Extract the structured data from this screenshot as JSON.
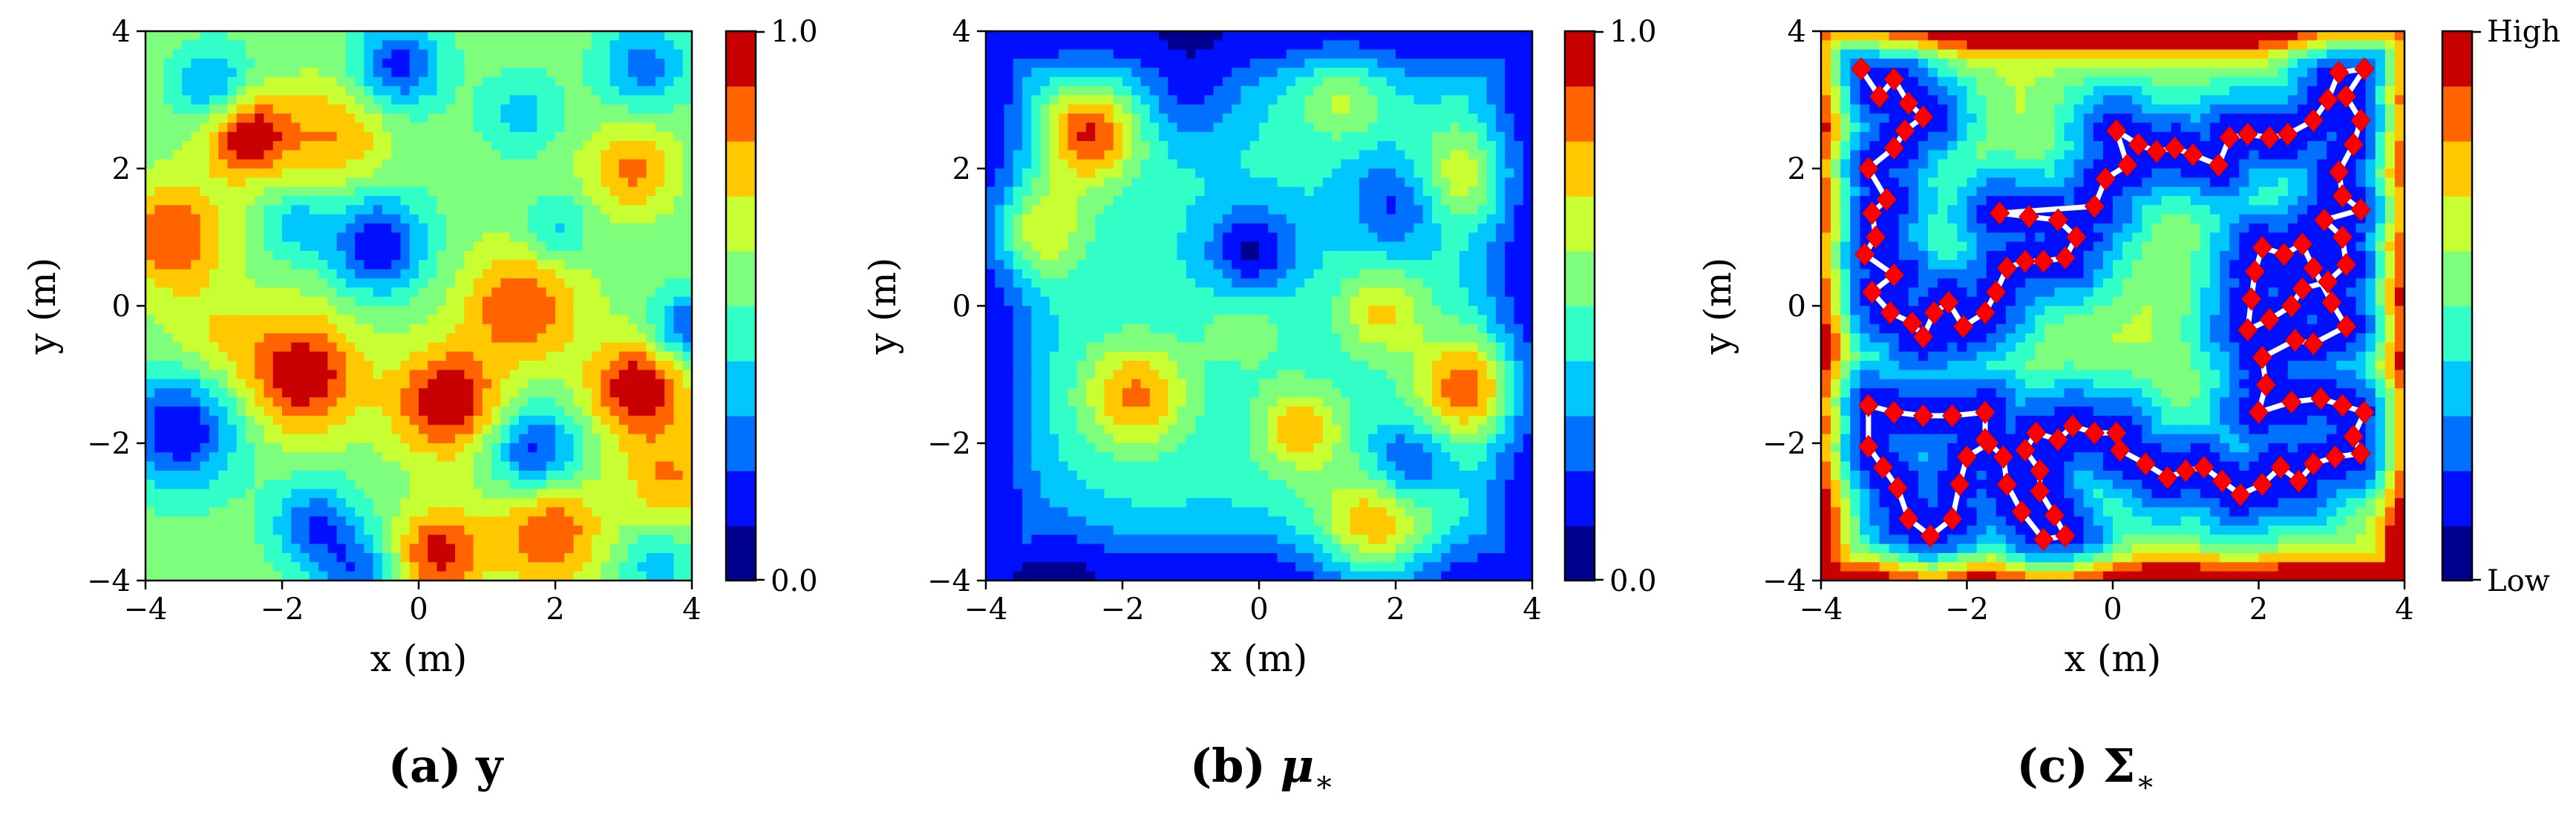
{
  "chart_data": [
    {
      "type": "heatmap",
      "panel": "a",
      "caption": {
        "label": "(a)",
        "symbol": "y"
      },
      "xlabel": "x (m)",
      "ylabel": "y (m)",
      "xlim": [
        -4,
        4
      ],
      "ylim": [
        -4,
        4
      ],
      "xticks": [
        "−4",
        "−2",
        "0",
        "2",
        "4"
      ],
      "yticks": [
        "−4",
        "−2",
        "0",
        "2",
        "4"
      ],
      "colorbar": {
        "min_label": "0.0",
        "max_label": "1.0",
        "levels": 10
      },
      "colormap": "jet",
      "base_level": 0.55,
      "blobs": [
        {
          "x": -2.5,
          "y": 2.5,
          "s": 0.45,
          "a": 0.45
        },
        {
          "x": -3.6,
          "y": 1.0,
          "s": 0.55,
          "a": 0.35
        },
        {
          "x": -1.7,
          "y": -1.0,
          "s": 0.6,
          "a": 0.45
        },
        {
          "x": 0.4,
          "y": -1.4,
          "s": 0.55,
          "a": 0.45
        },
        {
          "x": 1.5,
          "y": 0.0,
          "s": 0.6,
          "a": 0.35
        },
        {
          "x": 3.2,
          "y": -1.2,
          "s": 0.5,
          "a": 0.45
        },
        {
          "x": 0.3,
          "y": -3.6,
          "s": 0.45,
          "a": 0.4
        },
        {
          "x": 1.9,
          "y": -3.3,
          "s": 0.55,
          "a": 0.35
        },
        {
          "x": -1.2,
          "y": 2.5,
          "s": 0.55,
          "a": 0.25
        },
        {
          "x": 3.1,
          "y": 2.0,
          "s": 0.45,
          "a": 0.28
        },
        {
          "x": 3.7,
          "y": -2.5,
          "s": 0.5,
          "a": 0.25
        },
        {
          "x": -3.0,
          "y": -0.5,
          "s": 0.5,
          "a": 0.15
        },
        {
          "x": -0.6,
          "y": 0.9,
          "s": 0.5,
          "a": -0.45
        },
        {
          "x": 1.7,
          "y": -2.1,
          "s": 0.45,
          "a": -0.4
        },
        {
          "x": -0.3,
          "y": 3.5,
          "s": 0.45,
          "a": -0.4
        },
        {
          "x": -3.0,
          "y": 3.2,
          "s": 0.4,
          "a": -0.3
        },
        {
          "x": -3.5,
          "y": -1.8,
          "s": 0.6,
          "a": -0.45
        },
        {
          "x": -1.5,
          "y": -3.2,
          "s": 0.45,
          "a": -0.35
        },
        {
          "x": 3.3,
          "y": 3.5,
          "s": 0.45,
          "a": -0.3
        },
        {
          "x": 1.5,
          "y": 2.8,
          "s": 0.4,
          "a": -0.2
        },
        {
          "x": -1.8,
          "y": 1.2,
          "s": 0.35,
          "a": -0.2
        },
        {
          "x": 3.9,
          "y": -0.3,
          "s": 0.35,
          "a": -0.35
        },
        {
          "x": 2.0,
          "y": 1.1,
          "s": 0.35,
          "a": -0.2
        },
        {
          "x": -0.9,
          "y": -3.9,
          "s": 0.4,
          "a": -0.3
        },
        {
          "x": 3.5,
          "y": -3.8,
          "s": 0.4,
          "a": -0.2
        }
      ]
    },
    {
      "type": "heatmap",
      "panel": "b",
      "caption": {
        "label": "(b)",
        "symbol": "μ",
        "subscript": "∗"
      },
      "xlabel": "x (m)",
      "ylabel": "y (m)",
      "xlim": [
        -4,
        4
      ],
      "ylim": [
        -4,
        4
      ],
      "xticks": [
        "−4",
        "−2",
        "0",
        "2",
        "4"
      ],
      "yticks": [
        "−4",
        "−2",
        "0",
        "2",
        "4"
      ],
      "colorbar": {
        "min_label": "0.0",
        "max_label": "1.0",
        "levels": 10
      },
      "colormap": "jet",
      "base_level": 0.42,
      "edge_fade": 0.3,
      "blobs": [
        {
          "x": -2.5,
          "y": 2.5,
          "s": 0.5,
          "a": 0.5
        },
        {
          "x": -3.3,
          "y": 1.1,
          "s": 0.5,
          "a": 0.35
        },
        {
          "x": -1.8,
          "y": -1.3,
          "s": 0.55,
          "a": 0.4
        },
        {
          "x": 0.6,
          "y": -1.8,
          "s": 0.45,
          "a": 0.35
        },
        {
          "x": 3.1,
          "y": -1.2,
          "s": 0.55,
          "a": 0.5
        },
        {
          "x": 1.7,
          "y": -3.3,
          "s": 0.6,
          "a": 0.45
        },
        {
          "x": 3.0,
          "y": 1.9,
          "s": 0.5,
          "a": 0.3
        },
        {
          "x": 1.8,
          "y": -0.1,
          "s": 0.45,
          "a": 0.3
        },
        {
          "x": 1.2,
          "y": 3.1,
          "s": 0.45,
          "a": 0.25
        },
        {
          "x": -0.2,
          "y": -0.3,
          "s": 0.45,
          "a": 0.15
        },
        {
          "x": -0.1,
          "y": 0.8,
          "s": 0.45,
          "a": -0.35
        },
        {
          "x": 2.0,
          "y": 1.5,
          "s": 0.5,
          "a": -0.25
        },
        {
          "x": 2.2,
          "y": -2.3,
          "s": 0.4,
          "a": -0.3
        },
        {
          "x": -1.0,
          "y": 3.0,
          "s": 0.5,
          "a": -0.2
        },
        {
          "x": -3.0,
          "y": -3.3,
          "s": 0.5,
          "a": -0.1
        }
      ]
    },
    {
      "type": "heatmap",
      "panel": "c",
      "caption": {
        "label": "(c)",
        "symbol": "Σ",
        "subscript": "∗"
      },
      "xlabel": "x (m)",
      "ylabel": "y (m)",
      "xlim": [
        -4,
        4
      ],
      "ylim": [
        -4,
        4
      ],
      "xticks": [
        "−4",
        "−2",
        "0",
        "2",
        "4"
      ],
      "yticks": [
        "−4",
        "−2",
        "0",
        "2",
        "4"
      ],
      "colorbar": {
        "min_label": "Low",
        "max_label": "High",
        "levels": 10
      },
      "colormap": "jet",
      "overlay": "sampling path with measurement points",
      "path": [
        [
          -3.45,
          3.45
        ],
        [
          -3.2,
          3.05
        ],
        [
          -3.0,
          3.3
        ],
        [
          -2.8,
          2.95
        ],
        [
          -2.6,
          2.75
        ],
        [
          -2.85,
          2.55
        ],
        [
          -3.0,
          2.3
        ],
        [
          -3.35,
          2.0
        ],
        [
          -3.1,
          1.55
        ],
        [
          -3.3,
          1.35
        ],
        [
          -3.25,
          1.0
        ],
        [
          -3.4,
          0.75
        ],
        [
          -3.0,
          0.45
        ],
        [
          -3.3,
          0.2
        ],
        [
          -3.05,
          -0.1
        ],
        [
          -2.75,
          -0.25
        ],
        [
          -2.6,
          -0.45
        ],
        [
          -2.45,
          -0.1
        ],
        [
          -2.25,
          0.05
        ],
        [
          -2.05,
          -0.3
        ],
        [
          -1.75,
          -0.1
        ],
        [
          -1.6,
          0.2
        ],
        [
          -1.45,
          0.55
        ],
        [
          -1.2,
          0.65
        ],
        [
          -0.95,
          0.65
        ],
        [
          -0.65,
          0.7
        ],
        [
          -0.5,
          1.0
        ],
        [
          -0.75,
          1.25
        ],
        [
          -1.15,
          1.3
        ],
        [
          -1.55,
          1.35
        ],
        [
          -0.25,
          1.45
        ],
        [
          -0.1,
          1.85
        ],
        [
          0.2,
          2.05
        ],
        [
          0.05,
          2.55
        ],
        [
          0.35,
          2.35
        ],
        [
          0.6,
          2.25
        ],
        [
          0.85,
          2.3
        ],
        [
          1.1,
          2.2
        ],
        [
          1.45,
          2.05
        ],
        [
          1.6,
          2.45
        ],
        [
          1.85,
          2.5
        ],
        [
          2.15,
          2.45
        ],
        [
          2.4,
          2.5
        ],
        [
          2.75,
          2.7
        ],
        [
          2.95,
          3.0
        ],
        [
          3.1,
          3.4
        ],
        [
          3.45,
          3.45
        ],
        [
          3.2,
          3.05
        ],
        [
          3.4,
          2.7
        ],
        [
          3.3,
          2.35
        ],
        [
          3.1,
          1.95
        ],
        [
          3.15,
          1.6
        ],
        [
          3.4,
          1.4
        ],
        [
          2.9,
          1.25
        ],
        [
          3.15,
          1.0
        ],
        [
          3.2,
          0.6
        ],
        [
          2.95,
          0.35
        ],
        [
          2.6,
          0.25
        ],
        [
          2.45,
          0.0
        ],
        [
          2.15,
          -0.2
        ],
        [
          1.85,
          -0.35
        ],
        [
          1.9,
          0.1
        ],
        [
          1.95,
          0.5
        ],
        [
          2.05,
          0.85
        ],
        [
          2.35,
          0.75
        ],
        [
          2.6,
          0.9
        ],
        [
          2.75,
          0.55
        ],
        [
          3.0,
          0.05
        ],
        [
          3.2,
          -0.3
        ],
        [
          2.75,
          -0.55
        ],
        [
          2.5,
          -0.5
        ],
        [
          2.05,
          -0.75
        ],
        [
          2.1,
          -1.15
        ],
        [
          2.0,
          -1.55
        ],
        [
          2.45,
          -1.4
        ],
        [
          2.85,
          -1.35
        ],
        [
          3.15,
          -1.45
        ],
        [
          3.45,
          -1.55
        ],
        [
          3.3,
          -1.9
        ],
        [
          3.4,
          -2.15
        ],
        [
          3.05,
          -2.2
        ],
        [
          2.75,
          -2.3
        ],
        [
          2.55,
          -2.55
        ],
        [
          2.3,
          -2.35
        ],
        [
          2.05,
          -2.6
        ],
        [
          1.75,
          -2.75
        ],
        [
          1.5,
          -2.55
        ],
        [
          1.25,
          -2.35
        ],
        [
          1.0,
          -2.4
        ],
        [
          0.75,
          -2.5
        ],
        [
          0.45,
          -2.3
        ],
        [
          0.1,
          -2.1
        ],
        [
          0.05,
          -1.85
        ],
        [
          -0.25,
          -1.85
        ],
        [
          -0.55,
          -1.75
        ],
        [
          -0.75,
          -1.95
        ],
        [
          -1.05,
          -1.85
        ],
        [
          -1.2,
          -2.1
        ],
        [
          -1.0,
          -2.4
        ],
        [
          -1.0,
          -2.7
        ],
        [
          -0.8,
          -3.05
        ],
        [
          -0.65,
          -3.35
        ],
        [
          -0.95,
          -3.4
        ],
        [
          -1.25,
          -3.0
        ],
        [
          -1.45,
          -2.6
        ],
        [
          -1.5,
          -2.2
        ],
        [
          -1.7,
          -2.0
        ],
        [
          -2.0,
          -2.2
        ],
        [
          -2.1,
          -2.6
        ],
        [
          -2.2,
          -3.1
        ],
        [
          -2.5,
          -3.35
        ],
        [
          -2.8,
          -3.1
        ],
        [
          -2.95,
          -2.65
        ],
        [
          -3.15,
          -2.35
        ],
        [
          -3.35,
          -2.05
        ],
        [
          -3.35,
          -1.45
        ],
        [
          -3.0,
          -1.55
        ],
        [
          -2.6,
          -1.6
        ],
        [
          -2.2,
          -1.6
        ],
        [
          -1.75,
          -1.55
        ],
        [
          -1.75,
          -1.95
        ]
      ]
    }
  ]
}
